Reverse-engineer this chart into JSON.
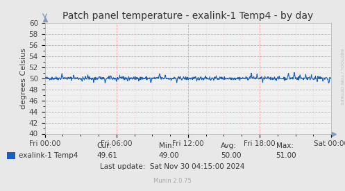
{
  "title": "Patch panel temperature - exalink-1 Temp4 - by day",
  "ylabel": "degrees Celsius",
  "ylim": [
    40,
    60
  ],
  "yticks": [
    40,
    42,
    44,
    46,
    48,
    50,
    52,
    54,
    56,
    58,
    60
  ],
  "xtick_labels": [
    "Fri 00:00",
    "Fri 06:00",
    "Fri 12:00",
    "Fri 18:00",
    "Sat 00:00"
  ],
  "line_color": "#1a5eb8",
  "grid_color_major": "#e8a0a0",
  "grid_color_minor": "#e8c0c0",
  "bg_color": "#e8e8e8",
  "plot_bg_color": "#f0f0f0",
  "legend_label": "exalink-1 Temp4",
  "legend_color": "#1a5eb8",
  "cur_label": "Cur:",
  "cur_val": "49.61",
  "min_label": "Min:",
  "min_val": "49.00",
  "avg_label": "Avg:",
  "avg_val": "50.00",
  "max_label": "Max:",
  "max_val": "51.00",
  "last_update": "Last update:  Sat Nov 30 04:15:00 2024",
  "watermark": "Munin 2.0.75",
  "rrdtool_label": "RRDTOOL / TOBI OETIKER",
  "title_fontsize": 10,
  "axis_label_fontsize": 8,
  "tick_fontsize": 7.5,
  "stats_fontsize": 7.5,
  "watermark_fontsize": 6,
  "base_temp": 50.0,
  "noise_seed": 42
}
